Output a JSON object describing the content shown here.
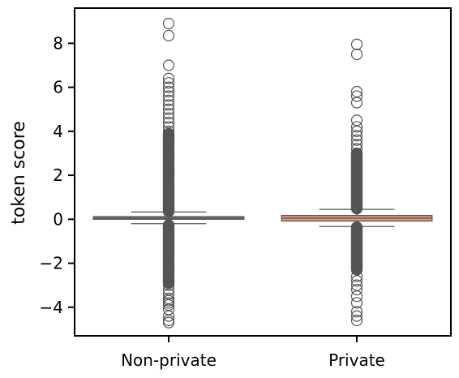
{
  "chart_data": {
    "type": "box",
    "title": "",
    "xlabel": "",
    "ylabel": "token score",
    "ylim": [
      -5.3,
      9.6
    ],
    "yticks": [
      -4,
      -2,
      0,
      2,
      4,
      6,
      8
    ],
    "ytick_labels": [
      "−4",
      "−2",
      "0",
      "2",
      "4",
      "6",
      "8"
    ],
    "categories": [
      "Non-private",
      "Private"
    ],
    "grid": false,
    "legend": "none",
    "boxes": [
      {
        "name": "Non-private",
        "color": "#7fa58e",
        "q1": 0.0,
        "median": 0.05,
        "q3": 0.12,
        "whisker_low": -0.2,
        "whisker_high": 0.33,
        "outliers_dense": [
          [
            -2.9,
            -0.25
          ],
          [
            0.35,
            3.9
          ]
        ],
        "outliers": [
          -4.7,
          -4.6,
          -4.4,
          -4.1,
          -3.9,
          -3.8,
          -3.7,
          -3.6,
          -3.4,
          -3.2,
          -3.0,
          4.0,
          4.2,
          4.4,
          4.6,
          4.8,
          5.0,
          5.2,
          5.4,
          5.6,
          5.8,
          6.0,
          6.2,
          6.4,
          7.0,
          8.35,
          8.9
        ]
      },
      {
        "name": "Private",
        "color": "#e9997a",
        "q1": -0.08,
        "median": 0.05,
        "q3": 0.17,
        "whisker_low": -0.33,
        "whisker_high": 0.45,
        "outliers_dense": [
          [
            -2.3,
            -0.35
          ],
          [
            0.48,
            3.0
          ]
        ],
        "outliers": [
          -4.6,
          -4.4,
          -4.2,
          -3.8,
          -3.5,
          -3.2,
          -3.0,
          -2.8,
          -2.6,
          3.2,
          3.4,
          3.6,
          3.8,
          4.0,
          4.2,
          4.5,
          5.3,
          5.6,
          5.8,
          7.5,
          7.95
        ]
      }
    ]
  }
}
